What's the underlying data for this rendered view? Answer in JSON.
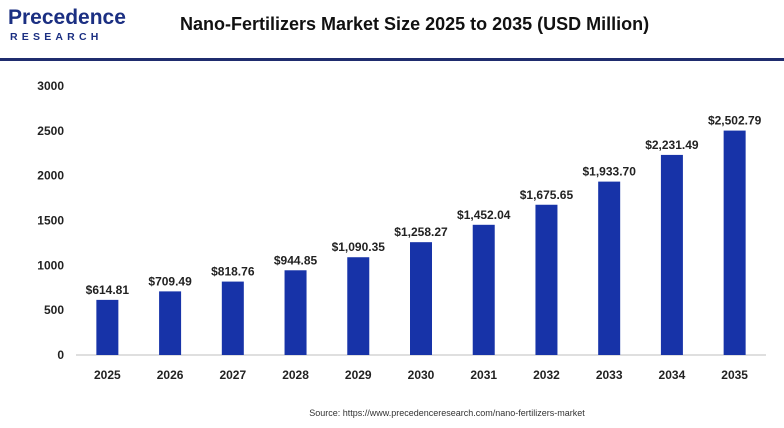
{
  "header": {
    "logo_main": "Precedence",
    "logo_sub": "RESEARCH",
    "title": "Nano-Fertilizers Market Size 2025 to 2035 (USD Million)"
  },
  "source": "Source: https://www.precedenceresearch.com/nano-fertilizers-market",
  "colors": {
    "bar": "#1733a8",
    "divider": "#1f2c6e",
    "logo": "#1b2f82"
  },
  "chart_data": {
    "type": "bar",
    "title": "Nano-Fertilizers Market Size 2025 to 2035 (USD Million)",
    "xlabel": "",
    "ylabel": "",
    "ylim": [
      0,
      3000
    ],
    "yticks": [
      "0",
      "500",
      "1000",
      "1500",
      "2000",
      "2500",
      "3000"
    ],
    "grid": false,
    "categories": [
      "2025",
      "2026",
      "2027",
      "2028",
      "2029",
      "2030",
      "2031",
      "2032",
      "2033",
      "2034",
      "2035"
    ],
    "values": [
      614.81,
      709.49,
      818.76,
      944.85,
      1090.35,
      1258.27,
      1452.04,
      1675.65,
      1933.7,
      2231.49,
      2502.79
    ],
    "data_labels": [
      "$614.81",
      "$709.49",
      "$818.76",
      "$944.85",
      "$1,090.35",
      "$1,258.27",
      "$1,452.04",
      "$1,675.65",
      "$1,933.70",
      "$2,231.49",
      "$2,502.79"
    ]
  }
}
